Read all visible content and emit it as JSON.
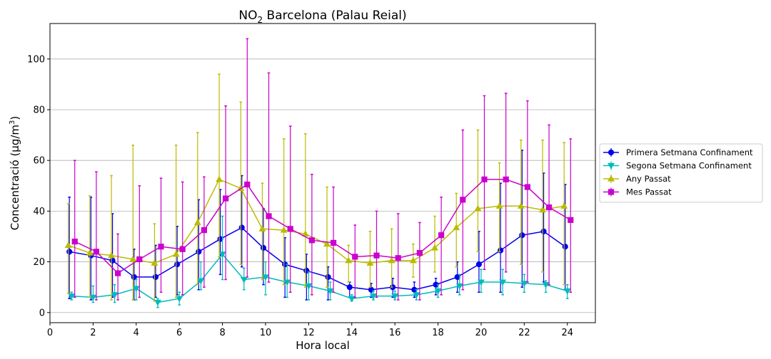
{
  "chart_data": {
    "type": "line",
    "title_main": "NO",
    "title_sub": "2",
    "title_rest": " Barcelona (Palau Reial)",
    "xlabel": "Hora local",
    "ylabel_main": "Concentració (µg/m",
    "ylabel_sup": "3",
    "ylabel_end": ")",
    "xlim": [
      0,
      25.3
    ],
    "ylim": [
      -4,
      114
    ],
    "xticks": [
      0,
      2,
      4,
      6,
      8,
      10,
      12,
      14,
      16,
      18,
      20,
      22,
      24
    ],
    "yticks": [
      0,
      20,
      40,
      60,
      80,
      100
    ],
    "grid": "horizontal",
    "legend_position": "right",
    "x": [
      1,
      2,
      3,
      4,
      5,
      6,
      7,
      8,
      9,
      10,
      11,
      12,
      13,
      14,
      15,
      16,
      17,
      18,
      19,
      20,
      21,
      22,
      23,
      24
    ],
    "series": [
      {
        "name": "Primera Setmana Confinament",
        "color": "#0000ee",
        "marker": "circle",
        "values": [
          24,
          22.5,
          20.5,
          14,
          14,
          19,
          24,
          29,
          33.5,
          25.5,
          19,
          16.5,
          14,
          10,
          9,
          10,
          9,
          11,
          14,
          19,
          24.5,
          30.5,
          32,
          26
        ],
        "err_low": [
          5.5,
          5,
          6,
          5,
          6,
          7,
          9,
          15,
          18,
          11,
          6,
          5,
          5,
          6,
          6,
          6,
          6,
          7,
          8,
          8,
          8,
          10,
          12,
          9
        ],
        "err_high": [
          45.5,
          45.5,
          39,
          25,
          26.5,
          34,
          44.5,
          48.5,
          54,
          41,
          29.5,
          23,
          18,
          12,
          11.5,
          13.5,
          12,
          13.5,
          20,
          32,
          51,
          64,
          55,
          50.5
        ],
        "offset": -0.1
      },
      {
        "name": "Segona Setmana Confinament",
        "color": "#00bbbb",
        "marker": "triangle-down",
        "values": [
          6.5,
          6,
          7,
          9.5,
          4,
          5.5,
          12.5,
          23,
          13,
          14,
          12,
          10.5,
          8.5,
          5.5,
          6.5,
          6.5,
          7,
          8.5,
          10.5,
          12,
          12,
          11.5,
          11,
          8.5
        ],
        "err_low": [
          5,
          4,
          4,
          5,
          2,
          3,
          9,
          13,
          9,
          7,
          6,
          5,
          5,
          4.5,
          5,
          5,
          5,
          6,
          7,
          8,
          7,
          8,
          8,
          5.5
        ],
        "err_high": [
          8,
          10.5,
          11,
          13,
          5.5,
          8,
          20,
          38,
          17.5,
          20,
          19,
          16,
          12,
          7,
          8.5,
          8.5,
          9,
          11,
          15,
          17,
          17,
          15,
          12.5,
          11
        ],
        "offset": 0.0
      },
      {
        "name": "Any Passat",
        "color": "#bbbb00",
        "marker": "triangle-up",
        "values": [
          26.5,
          23.5,
          22.5,
          21,
          19.5,
          23,
          35.5,
          52.5,
          49,
          33,
          32.5,
          31,
          27,
          20.5,
          19.5,
          20.5,
          20.5,
          25.5,
          33.5,
          41,
          42,
          42,
          40.5,
          42
        ],
        "err_low": [
          7.5,
          6,
          5,
          5,
          4.5,
          6,
          11,
          22,
          19,
          13,
          11,
          10,
          10,
          12,
          10,
          10,
          14,
          16,
          18,
          24,
          24,
          19,
          16,
          11
        ],
        "err_high": [
          43,
          46,
          54,
          66,
          35,
          66,
          71,
          94,
          83,
          51,
          68.5,
          70.5,
          49.5,
          26.5,
          32,
          33,
          27,
          38,
          47,
          72,
          59,
          68,
          68,
          67
        ],
        "offset": -0.15
      },
      {
        "name": "Mes Passat",
        "color": "#cc00cc",
        "marker": "square",
        "values": [
          28,
          24,
          15.5,
          21,
          26,
          25,
          32.5,
          45,
          50.5,
          38,
          33,
          28.5,
          27.5,
          22,
          22.5,
          21.5,
          23.5,
          30.5,
          44.5,
          52.5,
          52.5,
          49.5,
          41.5,
          36.5
        ],
        "err_low": [
          6,
          5,
          5,
          6,
          8,
          7,
          10,
          13,
          14,
          12,
          8,
          7,
          8,
          6,
          6,
          5,
          5,
          7,
          9,
          17,
          16,
          12,
          11,
          8
        ],
        "err_high": [
          60,
          55.5,
          31,
          50,
          53,
          51.5,
          53.5,
          81.5,
          108,
          94.5,
          73.5,
          54.5,
          49.5,
          34.5,
          40,
          39,
          35.5,
          45.5,
          72,
          85.5,
          86.5,
          83.5,
          74,
          68.5
        ],
        "offset": 0.15
      }
    ]
  }
}
